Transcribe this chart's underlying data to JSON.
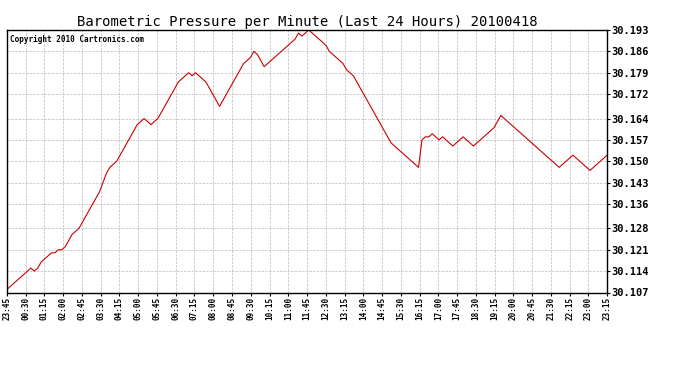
{
  "title": "Barometric Pressure per Minute (Last 24 Hours) 20100418",
  "copyright": "Copyright 2010 Cartronics.com",
  "line_color": "#cc0000",
  "background_color": "#ffffff",
  "grid_color": "#aaaaaa",
  "ylim": [
    30.107,
    30.193
  ],
  "yticks": [
    30.107,
    30.114,
    30.121,
    30.128,
    30.136,
    30.143,
    30.15,
    30.157,
    30.164,
    30.172,
    30.179,
    30.186,
    30.193
  ],
  "xtick_labels": [
    "23:45",
    "00:30",
    "01:15",
    "02:00",
    "02:45",
    "03:30",
    "04:15",
    "05:00",
    "05:45",
    "06:30",
    "07:15",
    "08:00",
    "08:45",
    "09:30",
    "10:15",
    "11:00",
    "11:45",
    "12:30",
    "13:15",
    "14:00",
    "14:45",
    "15:30",
    "16:15",
    "17:00",
    "17:45",
    "18:30",
    "19:15",
    "20:00",
    "20:45",
    "21:30",
    "22:15",
    "23:00",
    "23:15"
  ],
  "pressure_values": [
    30.108,
    30.109,
    30.11,
    30.111,
    30.112,
    30.113,
    30.114,
    30.115,
    30.114,
    30.115,
    30.117,
    30.118,
    30.119,
    30.12,
    30.12,
    30.121,
    30.121,
    30.122,
    30.124,
    30.126,
    30.127,
    30.128,
    30.13,
    30.132,
    30.134,
    30.136,
    30.138,
    30.14,
    30.143,
    30.146,
    30.148,
    30.149,
    30.15,
    30.152,
    30.154,
    30.156,
    30.158,
    30.16,
    30.162,
    30.163,
    30.164,
    30.163,
    30.162,
    30.163,
    30.164,
    30.166,
    30.168,
    30.17,
    30.172,
    30.174,
    30.176,
    30.177,
    30.178,
    30.179,
    30.178,
    30.179,
    30.178,
    30.177,
    30.176,
    30.174,
    30.172,
    30.17,
    30.168,
    30.17,
    30.172,
    30.174,
    30.176,
    30.178,
    30.18,
    30.182,
    30.183,
    30.184,
    30.186,
    30.185,
    30.183,
    30.181,
    30.182,
    30.183,
    30.184,
    30.185,
    30.186,
    30.187,
    30.188,
    30.189,
    30.19,
    30.192,
    30.191,
    30.192,
    30.193,
    30.192,
    30.191,
    30.19,
    30.189,
    30.188,
    30.186,
    30.185,
    30.184,
    30.183,
    30.182,
    30.18,
    30.179,
    30.178,
    30.176,
    30.174,
    30.172,
    30.17,
    30.168,
    30.166,
    30.164,
    30.162,
    30.16,
    30.158,
    30.156,
    30.155,
    30.154,
    30.153,
    30.152,
    30.151,
    30.15,
    30.149,
    30.148,
    30.157,
    30.158,
    30.158,
    30.159,
    30.158,
    30.157,
    30.158,
    30.157,
    30.156,
    30.155,
    30.156,
    30.157,
    30.158,
    30.157,
    30.156,
    30.155,
    30.156,
    30.157,
    30.158,
    30.159,
    30.16,
    30.161,
    30.163,
    30.165,
    30.164,
    30.163,
    30.162,
    30.161,
    30.16,
    30.159,
    30.158,
    30.157,
    30.156,
    30.155,
    30.154,
    30.153,
    30.152,
    30.151,
    30.15,
    30.149,
    30.148,
    30.149,
    30.15,
    30.151,
    30.152,
    30.151,
    30.15,
    30.149,
    30.148,
    30.147,
    30.148,
    30.149,
    30.15,
    30.151,
    30.152
  ],
  "figwidth": 6.9,
  "figheight": 3.75,
  "dpi": 100
}
